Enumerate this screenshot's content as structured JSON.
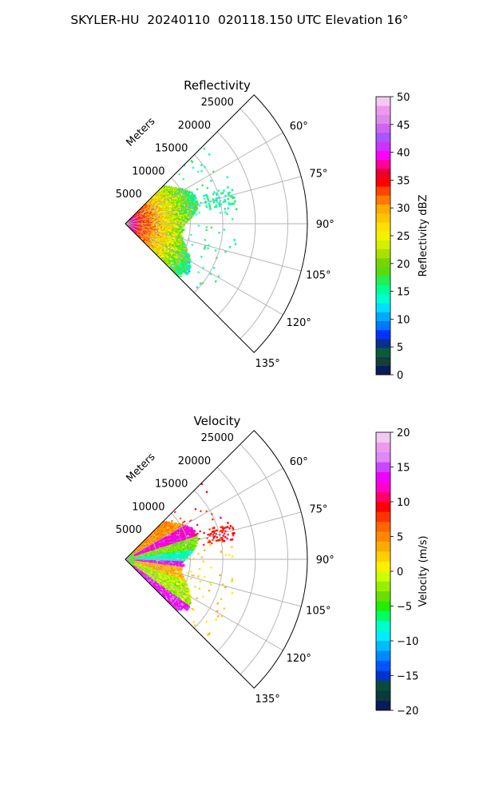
{
  "figure": {
    "suptitle": "SKYLER-HU  20240110  020118.150 UTC Elevation 16°"
  },
  "chart_data": [
    {
      "type": "heatmap",
      "subtype": "polar-sector",
      "title": "Reflectivity",
      "radial_label": "Meters",
      "radial_ticks": [
        "5000",
        "10000",
        "15000",
        "20000",
        "25000"
      ],
      "angle_ticks": [
        "60°",
        "75°",
        "90°",
        "105°",
        "120°",
        "135°"
      ],
      "theta_range_deg": [
        45,
        135
      ],
      "r_max_m": 28000,
      "grid": true,
      "colorbar": {
        "label": "Reflectivity dBZ",
        "range": [
          0,
          50
        ],
        "ticks": [
          "0",
          "5",
          "10",
          "15",
          "20",
          "25",
          "30",
          "35",
          "40",
          "45",
          "50"
        ],
        "colors": [
          "#0b1b5a",
          "#123f3a",
          "#0b5b3a",
          "#0a2f8f",
          "#0033ff",
          "#0077ff",
          "#00aaff",
          "#00dfff",
          "#00ffcc",
          "#00ff99",
          "#22ee55",
          "#55dd11",
          "#77d400",
          "#a8e000",
          "#d4ee00",
          "#f2f200",
          "#ffe000",
          "#ffc400",
          "#ffaa00",
          "#ff7a00",
          "#ff4400",
          "#ff0000",
          "#e80030",
          "#ff0099",
          "#ff00ff",
          "#cc33ff",
          "#aa55ff",
          "#cc66ee",
          "#dd88ee",
          "#ee99ee",
          "#f4c8f4"
        ]
      }
    },
    {
      "type": "heatmap",
      "subtype": "polar-sector",
      "title": "Velocity",
      "radial_label": "Meters",
      "radial_ticks": [
        "5000",
        "10000",
        "15000",
        "20000",
        "25000"
      ],
      "angle_ticks": [
        "60°",
        "75°",
        "90°",
        "105°",
        "120°",
        "135°"
      ],
      "theta_range_deg": [
        45,
        135
      ],
      "r_max_m": 28000,
      "grid": true,
      "colorbar": {
        "label": "Velocity (m/s)",
        "range": [
          -20,
          20
        ],
        "ticks": [
          "−20",
          "−15",
          "−10",
          "−5",
          "0",
          "5",
          "10",
          "15",
          "20"
        ],
        "colors": [
          "#0b1b5a",
          "#0a3a3a",
          "#0a4a3a",
          "#0033cc",
          "#0055ff",
          "#0088ff",
          "#00bbff",
          "#00eeff",
          "#00ffcc",
          "#00ff66",
          "#22ee00",
          "#66e000",
          "#99ee00",
          "#ccff00",
          "#ffee00",
          "#ffd000",
          "#ffaa00",
          "#ff8800",
          "#ff6600",
          "#ff3300",
          "#ff0000",
          "#ff0066",
          "#ff00cc",
          "#ee00ff",
          "#cc44ff",
          "#dd88ff",
          "#ee99ee",
          "#f4c8f4"
        ]
      }
    }
  ]
}
